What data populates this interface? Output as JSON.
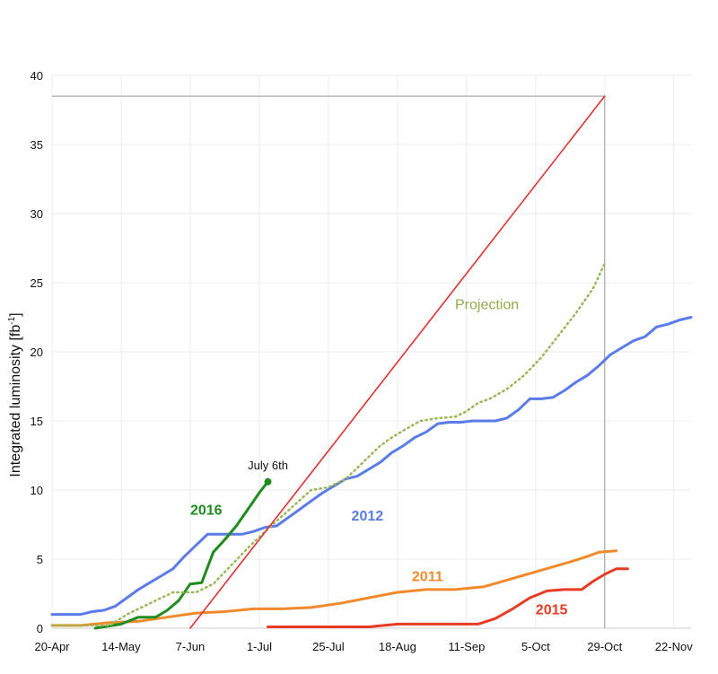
{
  "chart_data": {
    "type": "line",
    "xlabel": "",
    "ylabel_main": "Integrated luminosity [fb",
    "ylabel_sup": "-1",
    "ylabel_end": "]",
    "ylim": [
      0,
      40
    ],
    "yticks": [
      "0",
      "5",
      "10",
      "15",
      "20",
      "25",
      "30",
      "35",
      "40"
    ],
    "xlim_days": [
      0,
      222
    ],
    "xticks": [
      {
        "label": "20-Apr",
        "day": 0
      },
      {
        "label": "14-May",
        "day": 24
      },
      {
        "label": "7-Jun",
        "day": 48
      },
      {
        "label": "1-Jul",
        "day": 72
      },
      {
        "label": "25-Jul",
        "day": 96
      },
      {
        "label": "18-Aug",
        "day": 120
      },
      {
        "label": "11-Sep",
        "day": 144
      },
      {
        "label": "5-Oct",
        "day": 168
      },
      {
        "label": "29-Oct",
        "day": 192
      },
      {
        "label": "22-Nov",
        "day": 216
      }
    ],
    "series": [
      {
        "name": "2012",
        "color": "#5b7be8",
        "style": "solid",
        "label_at": [
          104,
          7.8
        ],
        "points": [
          [
            0,
            1.0
          ],
          [
            10,
            1.0
          ],
          [
            14,
            1.2
          ],
          [
            18,
            1.3
          ],
          [
            22,
            1.6
          ],
          [
            26,
            2.2
          ],
          [
            30,
            2.8
          ],
          [
            34,
            3.3
          ],
          [
            38,
            3.8
          ],
          [
            42,
            4.3
          ],
          [
            46,
            5.2
          ],
          [
            50,
            6.0
          ],
          [
            54,
            6.8
          ],
          [
            58,
            6.8
          ],
          [
            62,
            6.8
          ],
          [
            66,
            6.8
          ],
          [
            70,
            7.0
          ],
          [
            74,
            7.3
          ],
          [
            78,
            7.4
          ],
          [
            82,
            8.0
          ],
          [
            86,
            8.6
          ],
          [
            90,
            9.2
          ],
          [
            94,
            9.8
          ],
          [
            98,
            10.3
          ],
          [
            102,
            10.8
          ],
          [
            106,
            11.0
          ],
          [
            110,
            11.5
          ],
          [
            114,
            12.0
          ],
          [
            118,
            12.7
          ],
          [
            122,
            13.2
          ],
          [
            126,
            13.8
          ],
          [
            130,
            14.2
          ],
          [
            134,
            14.8
          ],
          [
            138,
            14.9
          ],
          [
            142,
            14.9
          ],
          [
            146,
            15.0
          ],
          [
            150,
            15.0
          ],
          [
            154,
            15.0
          ],
          [
            158,
            15.2
          ],
          [
            162,
            15.8
          ],
          [
            166,
            16.6
          ],
          [
            170,
            16.6
          ],
          [
            174,
            16.7
          ],
          [
            178,
            17.2
          ],
          [
            182,
            17.8
          ],
          [
            186,
            18.3
          ],
          [
            190,
            19.0
          ],
          [
            194,
            19.8
          ],
          [
            198,
            20.3
          ],
          [
            202,
            20.8
          ],
          [
            206,
            21.1
          ],
          [
            210,
            21.8
          ],
          [
            214,
            22.0
          ],
          [
            218,
            22.3
          ],
          [
            222,
            22.5
          ]
        ]
      },
      {
        "name": "2011",
        "color": "#f08a2c",
        "style": "solid",
        "label_at": [
          125,
          3.4
        ],
        "points": [
          [
            0,
            0.2
          ],
          [
            10,
            0.2
          ],
          [
            20,
            0.4
          ],
          [
            30,
            0.5
          ],
          [
            40,
            0.8
          ],
          [
            50,
            1.1
          ],
          [
            60,
            1.2
          ],
          [
            70,
            1.4
          ],
          [
            80,
            1.4
          ],
          [
            90,
            1.5
          ],
          [
            100,
            1.8
          ],
          [
            110,
            2.2
          ],
          [
            120,
            2.6
          ],
          [
            130,
            2.8
          ],
          [
            140,
            2.8
          ],
          [
            150,
            3.0
          ],
          [
            160,
            3.6
          ],
          [
            170,
            4.2
          ],
          [
            180,
            4.8
          ],
          [
            186,
            5.2
          ],
          [
            190,
            5.5
          ],
          [
            196,
            5.6
          ]
        ]
      },
      {
        "name": "2015",
        "color": "#e83c24",
        "style": "solid",
        "label_at": [
          168,
          1.0
        ],
        "points": [
          [
            75,
            0.1
          ],
          [
            100,
            0.1
          ],
          [
            110,
            0.1
          ],
          [
            120,
            0.3
          ],
          [
            130,
            0.3
          ],
          [
            140,
            0.3
          ],
          [
            148,
            0.3
          ],
          [
            154,
            0.7
          ],
          [
            160,
            1.4
          ],
          [
            166,
            2.2
          ],
          [
            172,
            2.7
          ],
          [
            178,
            2.8
          ],
          [
            184,
            2.8
          ],
          [
            188,
            3.4
          ],
          [
            192,
            3.9
          ],
          [
            196,
            4.3
          ],
          [
            200,
            4.3
          ]
        ]
      },
      {
        "name": "2016",
        "color": "#1e8c1e",
        "style": "solid",
        "label_at": [
          48,
          8.2
        ],
        "points": [
          [
            15,
            0.0
          ],
          [
            24,
            0.3
          ],
          [
            30,
            0.8
          ],
          [
            36,
            0.8
          ],
          [
            40,
            1.3
          ],
          [
            44,
            2.0
          ],
          [
            48,
            3.2
          ],
          [
            52,
            3.3
          ],
          [
            56,
            5.5
          ],
          [
            60,
            6.4
          ],
          [
            64,
            7.4
          ],
          [
            68,
            8.6
          ],
          [
            72,
            9.8
          ],
          [
            75,
            10.6
          ]
        ]
      },
      {
        "name": "",
        "color": "#9ab85a",
        "style": "dotted",
        "label_at": [
          140,
          23.1
        ],
        "points": [
          [
            0,
            0.2
          ],
          [
            20,
            0.2
          ],
          [
            26,
            1.0
          ],
          [
            32,
            1.6
          ],
          [
            38,
            2.2
          ],
          [
            42,
            2.6
          ],
          [
            50,
            2.6
          ],
          [
            56,
            3.2
          ],
          [
            62,
            4.5
          ],
          [
            68,
            5.8
          ],
          [
            74,
            7.0
          ],
          [
            82,
            8.5
          ],
          [
            90,
            10.0
          ],
          [
            96,
            10.2
          ],
          [
            102,
            10.8
          ],
          [
            108,
            12.0
          ],
          [
            114,
            13.2
          ],
          [
            118,
            13.8
          ],
          [
            122,
            14.3
          ],
          [
            128,
            15.0
          ],
          [
            134,
            15.2
          ],
          [
            140,
            15.3
          ],
          [
            144,
            15.7
          ],
          [
            148,
            16.3
          ],
          [
            152,
            16.6
          ],
          [
            158,
            17.3
          ],
          [
            164,
            18.3
          ],
          [
            170,
            19.6
          ],
          [
            176,
            21.2
          ],
          [
            182,
            22.8
          ],
          [
            188,
            24.6
          ],
          [
            192,
            26.4
          ]
        ]
      },
      {
        "name": "",
        "color": "#e03030",
        "style": "solid",
        "label_at": null,
        "points": [
          [
            48,
            0.0
          ],
          [
            192,
            38.5
          ]
        ]
      }
    ],
    "annotations": [
      {
        "text": "Projection",
        "x": 140,
        "y": 23.1
      },
      {
        "text": "July 6th",
        "x": 75,
        "y": 11.5
      }
    ],
    "reference_lines": {
      "target": 38.5,
      "end_day": 192
    },
    "grid": true
  }
}
